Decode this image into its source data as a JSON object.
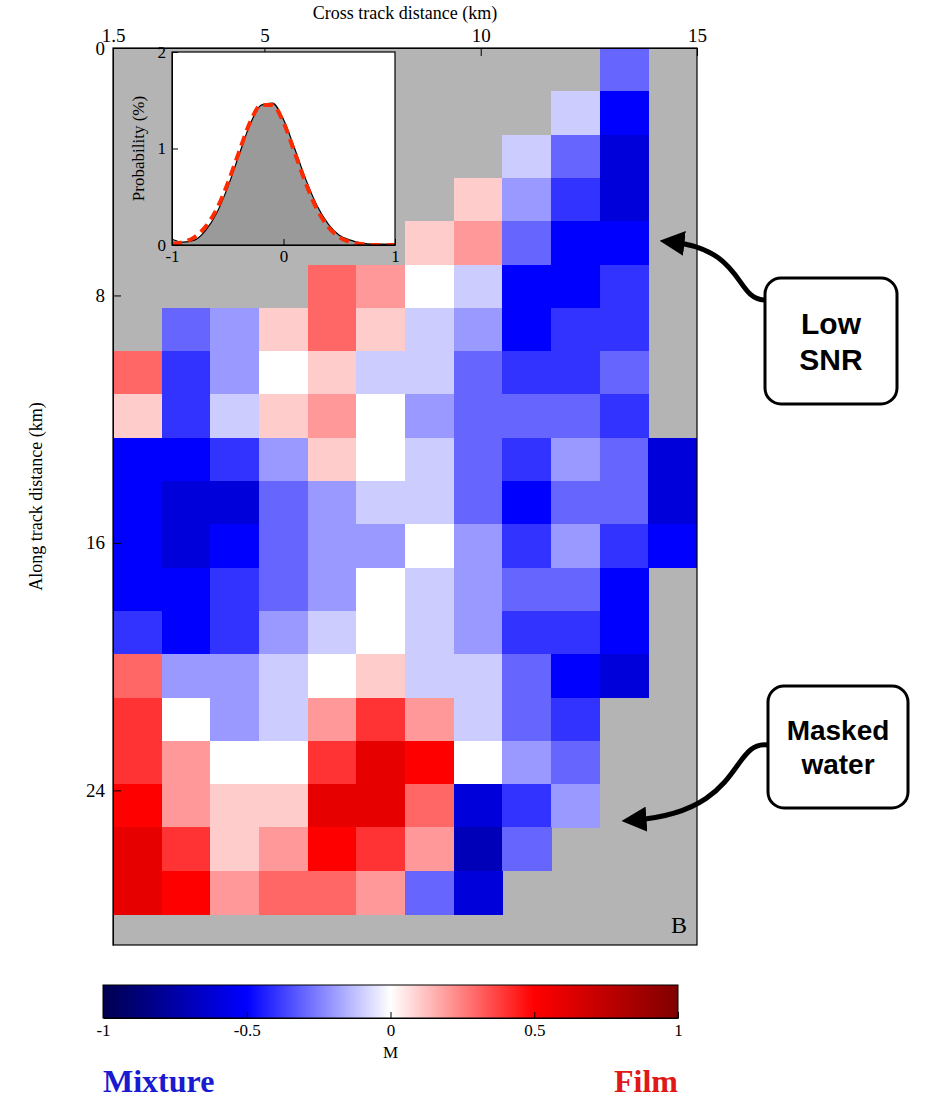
{
  "chart_data": [
    {
      "type": "heatmap",
      "xlabel": "Cross track distance (km)",
      "ylabel": "Along track distance (km)",
      "xlim": [
        1.5,
        15
      ],
      "xticks": [
        1.5,
        5,
        10,
        15
      ],
      "ylim": [
        0,
        29
      ],
      "yticks": [
        0,
        8,
        16,
        24
      ],
      "x_bins": [
        1.5,
        2.625,
        3.75,
        4.875,
        6,
        7.125,
        8.25,
        9.375,
        10.5,
        11.625,
        12.75,
        13.875,
        15
      ],
      "y_bins": [
        0,
        1.4,
        2.8,
        4.2,
        5.6,
        7,
        8.4,
        9.8,
        11.2,
        12.6,
        14,
        15.4,
        16.8,
        18.2,
        19.6,
        21,
        22.4,
        23.8,
        25.2,
        26.6,
        28
      ],
      "z": [
        [
          null,
          null,
          null,
          null,
          null,
          null,
          null,
          null,
          null,
          null,
          -0.3,
          null
        ],
        [
          null,
          null,
          null,
          null,
          null,
          null,
          null,
          null,
          null,
          -0.1,
          -0.5,
          null
        ],
        [
          null,
          null,
          null,
          null,
          null,
          null,
          null,
          null,
          -0.1,
          -0.3,
          -0.6,
          null
        ],
        [
          null,
          null,
          null,
          null,
          null,
          null,
          null,
          0.1,
          -0.2,
          -0.4,
          -0.6,
          null
        ],
        [
          null,
          null,
          null,
          null,
          null,
          null,
          0.1,
          0.2,
          -0.3,
          -0.5,
          -0.5,
          null
        ],
        [
          null,
          null,
          null,
          null,
          0.3,
          0.2,
          0.0,
          -0.1,
          -0.5,
          -0.5,
          -0.4,
          null
        ],
        [
          null,
          -0.3,
          -0.2,
          0.1,
          0.3,
          0.1,
          -0.1,
          -0.2,
          -0.5,
          -0.4,
          -0.4,
          null
        ],
        [
          0.3,
          -0.4,
          -0.2,
          0.0,
          0.1,
          -0.1,
          -0.1,
          -0.3,
          -0.4,
          -0.4,
          -0.3,
          null
        ],
        [
          0.1,
          -0.4,
          -0.1,
          0.1,
          0.2,
          0.0,
          -0.2,
          -0.3,
          -0.3,
          -0.3,
          -0.4,
          null
        ],
        [
          -0.5,
          -0.5,
          -0.4,
          -0.2,
          0.1,
          0.0,
          -0.1,
          -0.3,
          -0.4,
          -0.2,
          -0.3,
          -0.6
        ],
        [
          -0.5,
          -0.6,
          -0.6,
          -0.3,
          -0.2,
          -0.1,
          -0.1,
          -0.3,
          -0.5,
          -0.3,
          -0.3,
          -0.6
        ],
        [
          -0.5,
          -0.6,
          -0.5,
          -0.3,
          -0.2,
          -0.2,
          0.0,
          -0.2,
          -0.4,
          -0.2,
          -0.4,
          -0.5
        ],
        [
          -0.5,
          -0.5,
          -0.4,
          -0.3,
          -0.2,
          0.0,
          -0.1,
          -0.2,
          -0.3,
          -0.3,
          -0.5,
          null
        ],
        [
          -0.4,
          -0.5,
          -0.4,
          -0.2,
          -0.1,
          0.0,
          -0.1,
          -0.2,
          -0.4,
          -0.4,
          -0.5,
          null
        ],
        [
          0.3,
          -0.2,
          -0.2,
          -0.1,
          0.0,
          0.1,
          -0.1,
          -0.1,
          -0.3,
          -0.5,
          -0.6,
          null
        ],
        [
          0.4,
          0.0,
          -0.2,
          -0.1,
          0.2,
          0.4,
          0.2,
          -0.1,
          -0.3,
          -0.4,
          null,
          null
        ],
        [
          0.4,
          0.2,
          0.0,
          0.0,
          0.4,
          0.6,
          0.5,
          0.0,
          -0.2,
          -0.3,
          null,
          null
        ],
        [
          0.5,
          0.2,
          0.1,
          0.1,
          0.6,
          0.6,
          0.3,
          -0.6,
          -0.4,
          -0.2,
          null,
          null
        ],
        [
          0.6,
          0.4,
          0.1,
          0.2,
          0.5,
          0.4,
          0.2,
          -0.7,
          -0.3,
          null,
          null,
          null
        ],
        [
          0.6,
          0.5,
          0.2,
          0.3,
          0.3,
          0.2,
          -0.3,
          -0.6,
          null,
          null,
          null,
          null
        ]
      ],
      "colorbar": {
        "range": [
          -1,
          1
        ],
        "ticks": [
          -1,
          -0.5,
          0,
          0.5,
          1
        ],
        "label": "M",
        "end_labels": [
          "Mixture",
          "Film"
        ]
      },
      "annotations": [
        "Low SNR",
        "Masked water"
      ],
      "panel_label": "B"
    },
    {
      "type": "area",
      "ylabel": "Probability (%)",
      "xlim": [
        -1,
        1
      ],
      "xticks": [
        -1,
        0,
        1
      ],
      "ylim": [
        0,
        2
      ],
      "yticks": [
        0,
        1,
        2
      ],
      "x": [
        -1,
        -0.9,
        -0.8,
        -0.7,
        -0.6,
        -0.5,
        -0.4,
        -0.3,
        -0.2,
        -0.1,
        0,
        0.1,
        0.2,
        0.3,
        0.4,
        0.5,
        0.6,
        0.7,
        0.8,
        0.9,
        1
      ],
      "series": [
        {
          "type": "area",
          "color": "#000000",
          "line_style": "solid",
          "values": [
            0.06,
            0.03,
            0.05,
            0.15,
            0.33,
            0.6,
            0.93,
            1.25,
            1.45,
            1.47,
            1.3,
            1.0,
            0.68,
            0.41,
            0.22,
            0.1,
            0.05,
            0.02,
            0.01,
            0.01,
            0
          ]
        },
        {
          "type": "line",
          "color": "#ff2a00",
          "line_style": "dashed",
          "values": [
            0.01,
            0.03,
            0.08,
            0.19,
            0.37,
            0.64,
            0.96,
            1.27,
            1.45,
            1.45,
            1.27,
            0.96,
            0.64,
            0.37,
            0.19,
            0.08,
            0.03,
            0.01,
            0,
            0,
            0
          ]
        }
      ]
    }
  ]
}
